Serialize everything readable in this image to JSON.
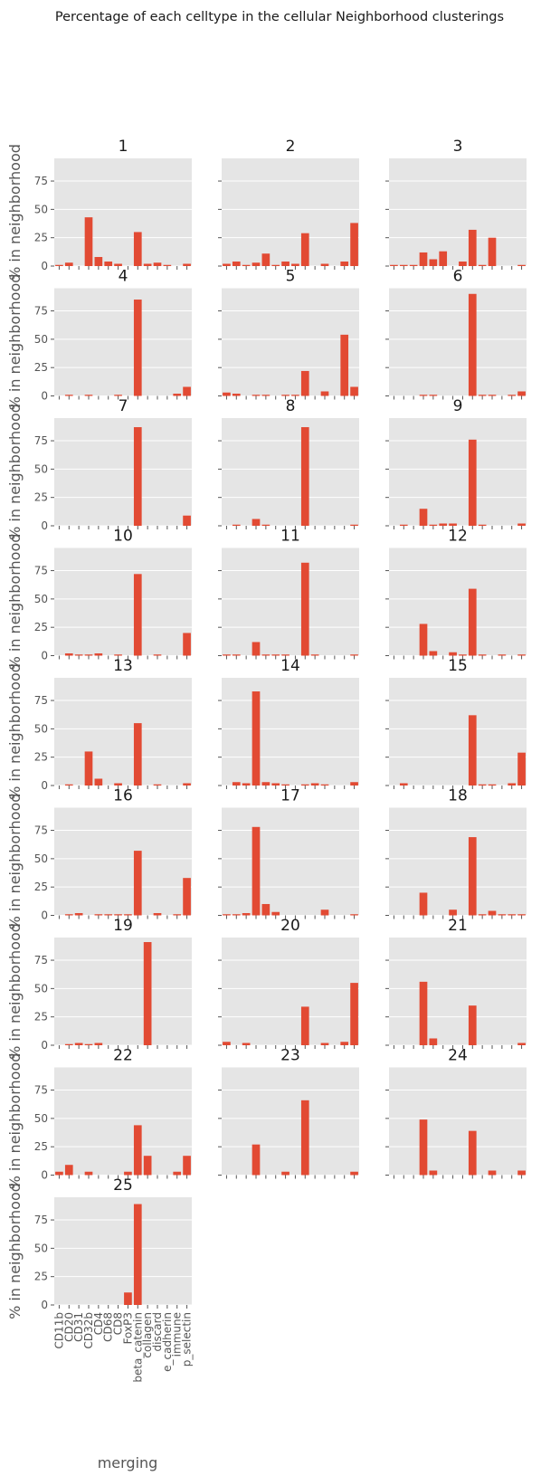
{
  "figure": {
    "title": "Percentage of each celltype in the cellular Neighborhood clusterings",
    "ylabel": "% in neighborhood",
    "xlabel": "merging",
    "bar_color": "#E24A33",
    "panel_bg": "#E5E5E5",
    "grid_color": "#FFFFFF"
  },
  "chart_data": {
    "type": "bar",
    "facet_layout": "3 columns, shared axes",
    "categories": [
      "CD11b",
      "CD20",
      "CD31",
      "CD32b",
      "CD4",
      "CD68",
      "CD8",
      "FoxP3",
      "beta_catenin",
      "collagen",
      "discard",
      "e_cadherin",
      "immune",
      "p_selectin"
    ],
    "yticks": [
      0,
      25,
      50,
      75
    ],
    "ylim": [
      0,
      95
    ],
    "grid": true,
    "panels": [
      {
        "name": "1",
        "values": [
          1,
          3,
          0,
          43,
          8,
          4,
          2,
          0,
          30,
          2,
          3,
          1,
          0,
          2
        ]
      },
      {
        "name": "2",
        "values": [
          2,
          4,
          1,
          3,
          11,
          1,
          4,
          2,
          29,
          0,
          2,
          0,
          4,
          38
        ]
      },
      {
        "name": "3",
        "values": [
          1,
          1,
          1,
          12,
          6,
          13,
          0,
          4,
          32,
          1,
          25,
          0,
          0,
          1
        ]
      },
      {
        "name": "4",
        "values": [
          0,
          1,
          0,
          1,
          0,
          0,
          1,
          0,
          85,
          0,
          0,
          0,
          2,
          8
        ]
      },
      {
        "name": "5",
        "values": [
          3,
          2,
          0,
          1,
          1,
          0,
          1,
          1,
          22,
          0,
          4,
          0,
          54,
          8
        ]
      },
      {
        "name": "6",
        "values": [
          0,
          0,
          0,
          1,
          1,
          0,
          0,
          0,
          90,
          1,
          1,
          0,
          1,
          4
        ]
      },
      {
        "name": "7",
        "values": [
          0,
          0,
          0,
          0,
          0,
          0,
          0,
          0,
          87,
          0,
          0,
          0,
          0,
          9
        ]
      },
      {
        "name": "8",
        "values": [
          0,
          1,
          0,
          6,
          1,
          0,
          0,
          0,
          87,
          0,
          0,
          0,
          0,
          1
        ]
      },
      {
        "name": "9",
        "values": [
          0,
          1,
          0,
          15,
          1,
          2,
          2,
          0,
          76,
          1,
          0,
          0,
          0,
          2
        ]
      },
      {
        "name": "10",
        "values": [
          0,
          2,
          1,
          1,
          2,
          0,
          1,
          0,
          72,
          0,
          1,
          0,
          0,
          20
        ]
      },
      {
        "name": "11",
        "values": [
          1,
          1,
          0,
          12,
          1,
          1,
          1,
          0,
          82,
          1,
          0,
          0,
          0,
          1
        ]
      },
      {
        "name": "12",
        "values": [
          0,
          0,
          0,
          28,
          4,
          0,
          3,
          1,
          59,
          1,
          0,
          1,
          0,
          1
        ]
      },
      {
        "name": "13",
        "values": [
          0,
          1,
          0,
          30,
          6,
          0,
          2,
          0,
          55,
          0,
          1,
          0,
          0,
          2
        ]
      },
      {
        "name": "14",
        "values": [
          0,
          3,
          2,
          83,
          3,
          2,
          1,
          0,
          1,
          2,
          1,
          0,
          0,
          3
        ]
      },
      {
        "name": "15",
        "values": [
          0,
          2,
          0,
          0,
          0,
          0,
          0,
          0,
          62,
          1,
          1,
          0,
          2,
          29
        ]
      },
      {
        "name": "16",
        "values": [
          0,
          1,
          2,
          0,
          1,
          1,
          1,
          1,
          57,
          0,
          2,
          0,
          1,
          33
        ]
      },
      {
        "name": "17",
        "values": [
          1,
          1,
          2,
          78,
          10,
          3,
          0,
          0,
          0,
          0,
          5,
          0,
          0,
          1
        ]
      },
      {
        "name": "18",
        "values": [
          0,
          0,
          0,
          20,
          0,
          0,
          5,
          0,
          69,
          1,
          4,
          1,
          1,
          1
        ]
      },
      {
        "name": "19",
        "values": [
          0,
          1,
          2,
          1,
          2,
          0,
          0,
          0,
          0,
          91,
          0,
          0,
          0,
          0
        ]
      },
      {
        "name": "20",
        "values": [
          3,
          0,
          2,
          0,
          0,
          0,
          0,
          0,
          34,
          0,
          2,
          0,
          3,
          55
        ]
      },
      {
        "name": "21",
        "values": [
          0,
          0,
          0,
          56,
          6,
          0,
          0,
          0,
          35,
          0,
          0,
          0,
          0,
          2
        ]
      },
      {
        "name": "22",
        "values": [
          3,
          9,
          0,
          3,
          0,
          0,
          0,
          3,
          44,
          17,
          0,
          0,
          3,
          17
        ]
      },
      {
        "name": "23",
        "values": [
          0,
          0,
          0,
          27,
          0,
          0,
          3,
          0,
          66,
          0,
          0,
          0,
          0,
          3
        ]
      },
      {
        "name": "24",
        "values": [
          0,
          0,
          0,
          49,
          4,
          0,
          0,
          0,
          39,
          0,
          4,
          0,
          0,
          4
        ]
      },
      {
        "name": "25",
        "values": [
          0,
          0,
          0,
          0,
          0,
          0,
          0,
          11,
          89,
          0,
          0,
          0,
          0,
          0
        ]
      }
    ]
  }
}
